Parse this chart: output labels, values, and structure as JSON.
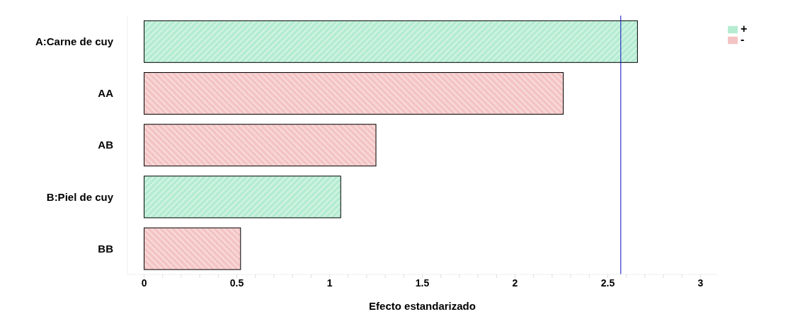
{
  "chart_data": {
    "type": "bar",
    "orientation": "horizontal",
    "xlabel": "Efecto estandarizado",
    "categories": [
      "A:Carne de cuy",
      "AA",
      "AB",
      "B:Piel de cuy",
      "BB"
    ],
    "series": [
      {
        "name": "+",
        "color": "#b5ecd2",
        "values": [
          2.66,
          null,
          null,
          1.06,
          null
        ]
      },
      {
        "name": "-",
        "color": "#f4c4c4",
        "values": [
          null,
          2.26,
          1.25,
          null,
          0.52
        ]
      }
    ],
    "xlim": [
      -0.09,
      3.09
    ],
    "xticks": [
      0,
      {
        "value": 0.1,
        "label": null
      },
      {
        "value": 0.2,
        "label": null
      },
      {
        "value": 0.3,
        "label": null
      },
      {
        "value": 0.4,
        "label": null
      },
      0.5,
      {
        "value": 0.6,
        "label": null
      },
      {
        "value": 0.7,
        "label": null
      },
      {
        "value": 0.8,
        "label": null
      },
      {
        "value": 0.9,
        "label": null
      },
      1,
      {
        "value": 1.1,
        "label": null
      },
      {
        "value": 1.2,
        "label": null
      },
      {
        "value": 1.3,
        "label": null
      },
      {
        "value": 1.4,
        "label": null
      },
      1.5,
      {
        "value": 1.6,
        "label": null
      },
      {
        "value": 1.7,
        "label": null
      },
      {
        "value": 1.8,
        "label": null
      },
      {
        "value": 1.9,
        "label": null
      },
      2,
      {
        "value": 2.1,
        "label": null
      },
      {
        "value": 2.2,
        "label": null
      },
      {
        "value": 2.3,
        "label": null
      },
      {
        "value": 2.4,
        "label": null
      },
      2.5,
      {
        "value": 2.6,
        "label": null
      },
      {
        "value": 2.7,
        "label": null
      },
      {
        "value": 2.8,
        "label": null
      },
      {
        "value": 2.9,
        "label": null
      },
      3
    ],
    "ref_lines": [
      {
        "axis": "x",
        "value": 2.57,
        "color": "#1010c0"
      }
    ],
    "legend": "top right",
    "grid": false
  }
}
